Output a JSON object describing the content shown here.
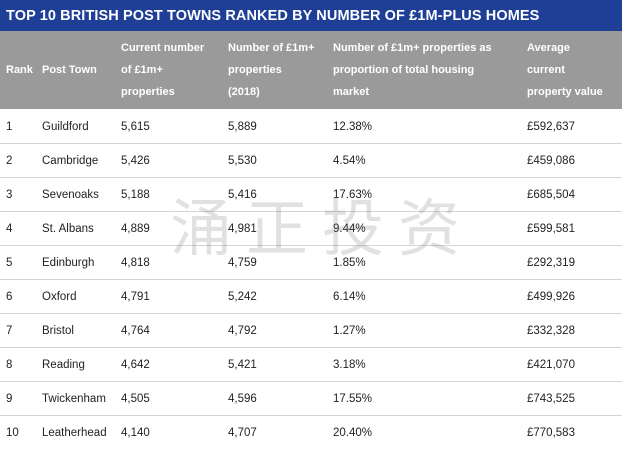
{
  "title": "TOP 10 BRITISH POST TOWNS RANKED BY NUMBER OF £1M-PLUS  HOMES",
  "headers": {
    "rank": "Rank",
    "town": "Post Town",
    "current": [
      "Current number",
      "of £1m+",
      "properties"
    ],
    "count2018": [
      "Number of £1m+",
      "properties",
      "(2018)"
    ],
    "proportion": [
      "Number of £1m+ properties as",
      "proportion of total housing",
      "market"
    ],
    "average": [
      "Average",
      "current",
      "property value"
    ]
  },
  "rows": [
    {
      "rank": "1",
      "town": "Guildford",
      "current": "5,615",
      "count2018": "5,889",
      "proportion": "12.38%",
      "average": "£592,637"
    },
    {
      "rank": "2",
      "town": "Cambridge",
      "current": "5,426",
      "count2018": "5,530",
      "proportion": "4.54%",
      "average": "£459,086"
    },
    {
      "rank": "3",
      "town": "Sevenoaks",
      "current": "5,188",
      "count2018": "5,416",
      "proportion": "17.63%",
      "average": "£685,504"
    },
    {
      "rank": "4",
      "town": "St. Albans",
      "current": "4,889",
      "count2018": "4,981",
      "proportion": "9.44%",
      "average": "£599,581"
    },
    {
      "rank": "5",
      "town": "Edinburgh",
      "current": "4,818",
      "count2018": "4,759",
      "proportion": "1.85%",
      "average": "£292,319"
    },
    {
      "rank": "6",
      "town": "Oxford",
      "current": "4,791",
      "count2018": "5,242",
      "proportion": "6.14%",
      "average": "£499,926"
    },
    {
      "rank": "7",
      "town": "Bristol",
      "current": "4,764",
      "count2018": "4,792",
      "proportion": "1.27%",
      "average": "£332,328"
    },
    {
      "rank": "8",
      "town": "Reading",
      "current": "4,642",
      "count2018": "5,421",
      "proportion": "3.18%",
      "average": "£421,070"
    },
    {
      "rank": "9",
      "town": "Twickenham",
      "current": "4,505",
      "count2018": "4,596",
      "proportion": "17.55%",
      "average": "£743,525"
    },
    {
      "rank": "10",
      "town": "Leatherhead",
      "current": "4,140",
      "count2018": "4,707",
      "proportion": "20.40%",
      "average": "£770,583"
    }
  ],
  "watermark": "涌正投资",
  "colors": {
    "title_bar": "#1e3f95",
    "header_bg": "#9a9a9a",
    "text": "#222222"
  }
}
